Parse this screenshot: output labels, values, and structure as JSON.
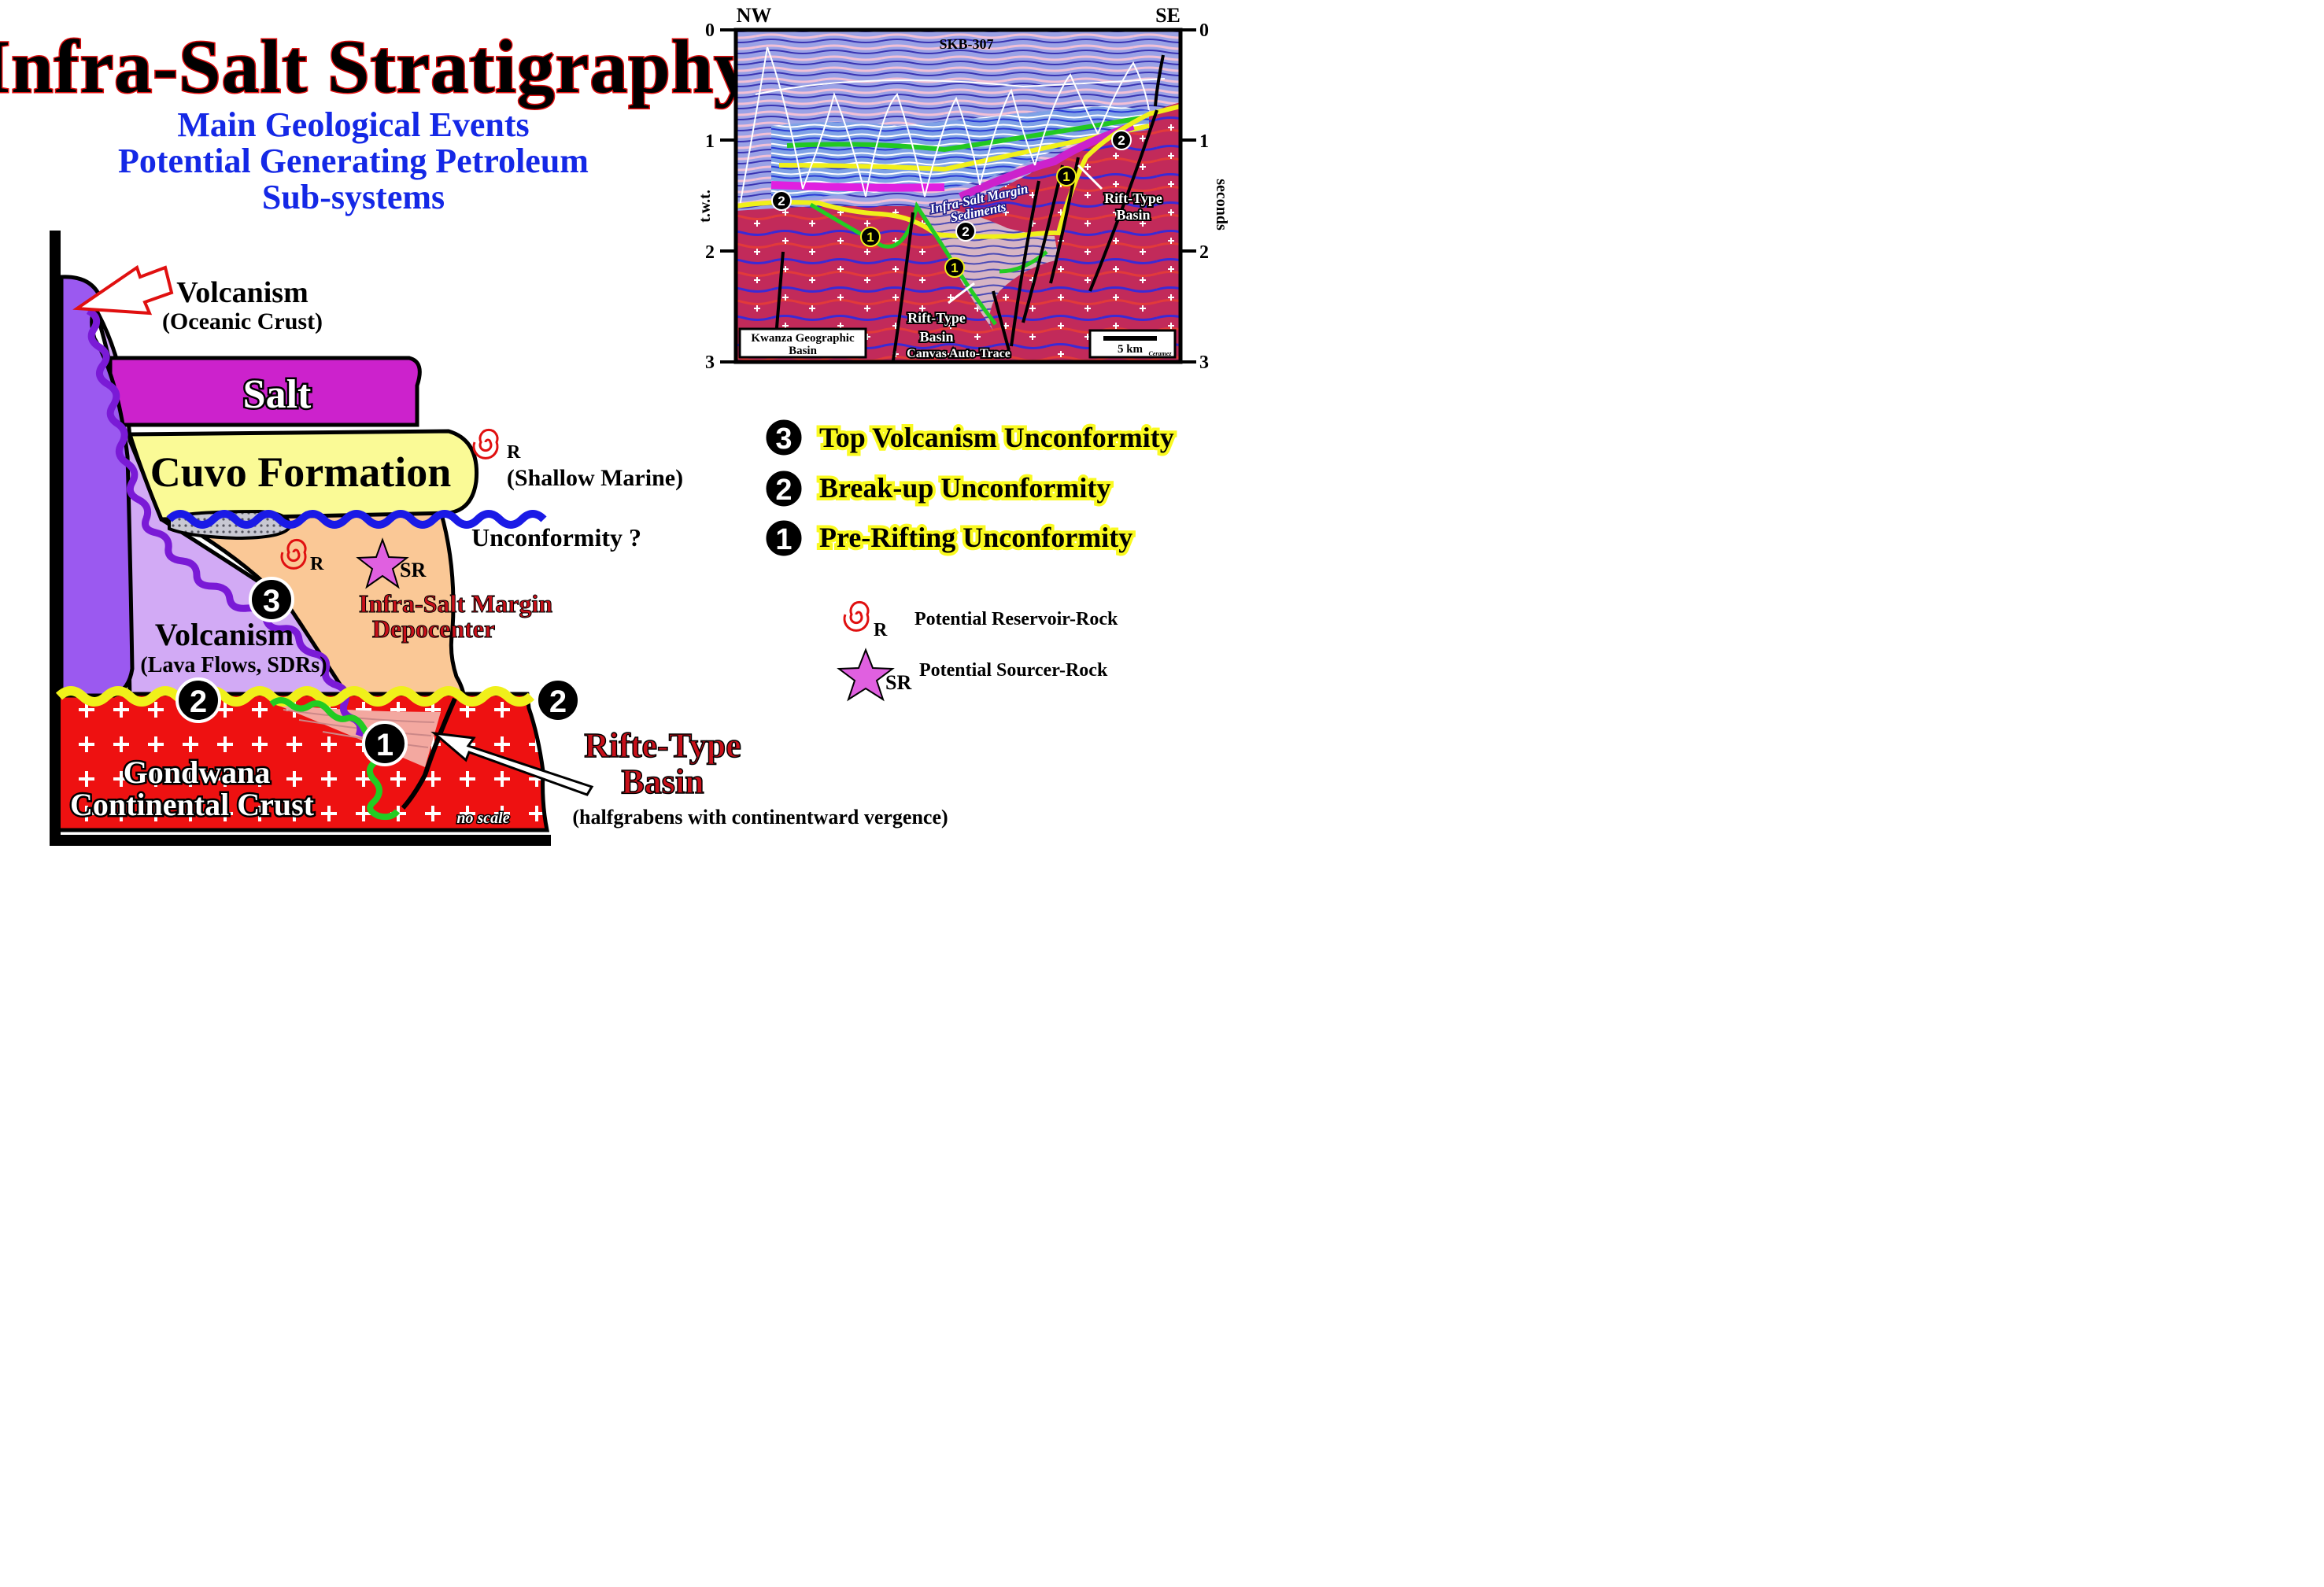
{
  "header": {
    "title": "Infra-Salt Stratigraphy",
    "subtitle_lines": [
      "Main Geological Events",
      "Potential Generating Petroleum",
      "Sub-systems"
    ]
  },
  "colors": {
    "title_fill": "#000000",
    "title_outline": "#e01010",
    "subtitle": "#1428e6",
    "salt": "#cc22cc",
    "cuvo": "#fafa96",
    "oceanic_volcanism": "#9b59f0",
    "volcanism": "#d2aaf5",
    "depocenter": "#fac896",
    "crust": "#ee1111",
    "unconformity_blue": "#1a1ae6",
    "unconformity_yellow": "#f0f01a",
    "unconformity_green": "#22cc22",
    "unconformity_purple": "#7a1ad6",
    "highlight": "#fafa20",
    "source_star": "#e060e0"
  },
  "diagram": {
    "labels": {
      "volcanism_oceanic": "Volcanism",
      "oceanic_crust": "(Oceanic Crust)",
      "salt": "Salt",
      "cuvo": "Cuvo Formation",
      "shallow_marine": "(Shallow Marine)",
      "unconformity": "Unconformity ?",
      "volcanism": "Volcanism",
      "lava_flows": "(Lava Flows, SDRs)",
      "depocenter_line1": "Infra-Salt Margin",
      "depocenter_line2": "Depocenter",
      "reservoir_letter": "R",
      "source_letters": "SR",
      "crust_line1": "Gondwana",
      "crust_line2": "Continental Crust",
      "no_scale": "no scale",
      "rift_line1": "Rifte-Type",
      "rift_line2": "Basin",
      "halfgrabens": "(halfgrabens with continentward vergence)"
    },
    "markers": [
      "3",
      "2",
      "2",
      "1"
    ]
  },
  "seismic": {
    "left_dir": "NW",
    "right_dir": "SE",
    "well": "SKB-307",
    "axis_label_left": "t.w.t.",
    "axis_label_right": "seconds",
    "ticks": [
      "0",
      "1",
      "2",
      "3"
    ],
    "labels": {
      "infra_salt_line1": "Infra-Salt Margin",
      "infra_salt_line2": "Sediments",
      "rift_right_line1": "Rift-Type",
      "rift_right_line2": "Basin",
      "rift_center_line1": "Rift-Type",
      "rift_center_line2": "Basin",
      "canvas": "Canvas Auto-Trace",
      "location_line1": "Kwanza Geographic",
      "location_line2": "Basin",
      "scale": "5 km",
      "credit": "Ceramez"
    },
    "markers": [
      "2",
      "2",
      "1",
      "1",
      "1",
      "2"
    ]
  },
  "legend": {
    "unconformities": [
      {
        "num": "3",
        "label": "Top Volcanism Unconformity"
      },
      {
        "num": "2",
        "label": "Break-up Unconformity"
      },
      {
        "num": "1",
        "label": "Pre-Rifting Unconformity"
      }
    ],
    "reservoir_letter": "R",
    "reservoir_label": "Potential Reservoir-Rock",
    "source_letters": "SR",
    "source_label": "Potential Sourcer-Rock"
  }
}
